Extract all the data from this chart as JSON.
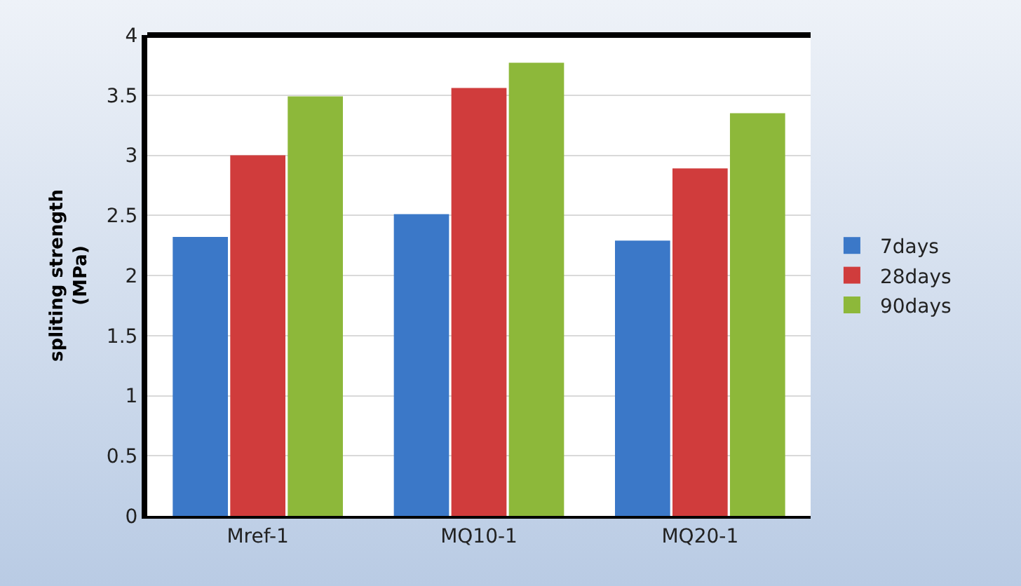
{
  "chart_data": {
    "type": "bar",
    "ylabel": "spliting strength\n(MPa)",
    "categories": [
      "Mref-1",
      "MQ10-1",
      "MQ20-1"
    ],
    "series": [
      {
        "name": "7days",
        "color": "#3b78c8",
        "values": [
          2.32,
          2.51,
          2.29
        ]
      },
      {
        "name": "28days",
        "color": "#d03c3c",
        "values": [
          3.0,
          3.56,
          2.89
        ]
      },
      {
        "name": "90days",
        "color": "#8db83a",
        "values": [
          3.49,
          3.77,
          3.35
        ]
      }
    ],
    "ylim": [
      0,
      4
    ],
    "yticks": [
      0,
      0.5,
      1,
      1.5,
      2,
      2.5,
      3,
      3.5,
      4
    ],
    "grid": "y",
    "legend": "right"
  }
}
